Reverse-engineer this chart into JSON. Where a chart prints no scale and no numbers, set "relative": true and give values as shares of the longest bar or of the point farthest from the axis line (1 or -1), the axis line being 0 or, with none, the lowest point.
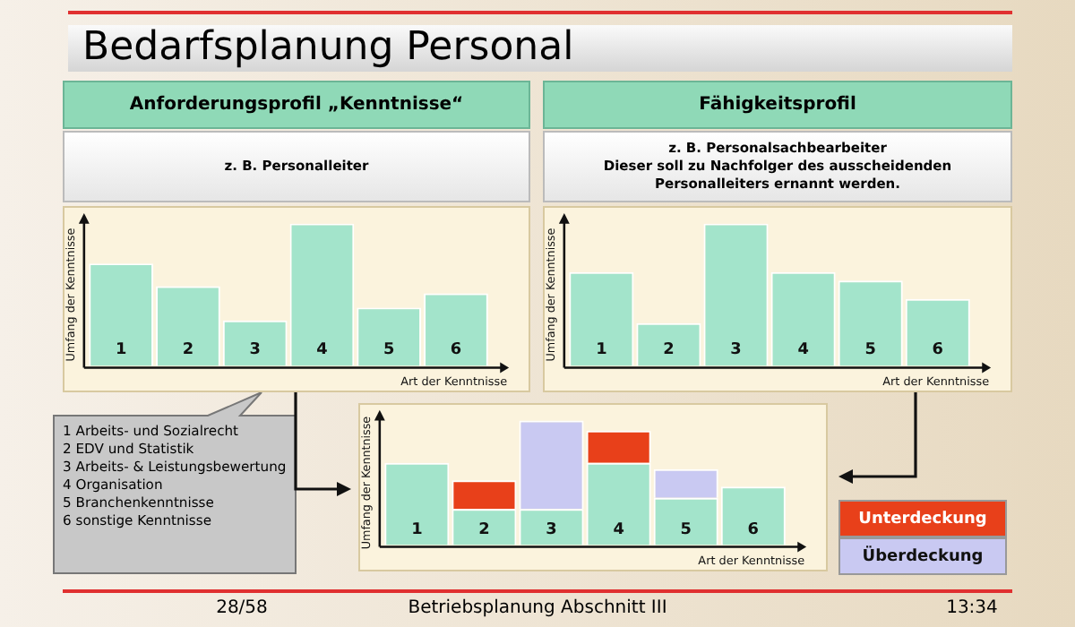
{
  "chart_data": [
    {
      "type": "other",
      "title": "Bedarfsplanung Personal",
      "annotations": [
        "1 Arbeits- und Sozialrecht",
        "2 EDV und Statistik",
        "3 Arbeits- & Leistungsbewertung",
        "4 Organisation",
        "5 Branchenkenntnisse",
        "6 sonstige Kenntnisse",
        "28/58",
        "Betriebsplanung Abschnitt III",
        "13:34"
      ]
    },
    {
      "type": "bar",
      "title": "Anforderungsprofil „Kenntnisse“",
      "subtitle": "z. B. Personalleiter",
      "xlabel": "Art der Kenntnisse",
      "ylabel": "Umfang der Kenntnisse",
      "relative": true,
      "categories": [
        "1",
        "2",
        "3",
        "4",
        "5",
        "6"
      ],
      "values": [
        0.72,
        0.56,
        0.32,
        1,
        0.41,
        0.51
      ],
      "color": "#a3e4cb"
    },
    {
      "type": "bar",
      "title": "Fähigkeitsprofil",
      "subtitle": "z. B. Personalsachbearbeiter\nDieser soll zu Nachfolger des ausscheidenden Personalleiters ernannt werden.",
      "xlabel": "Art der Kenntnisse",
      "ylabel": "Umfang der Kenntnisse",
      "relative": true,
      "categories": [
        "1",
        "2",
        "3",
        "4",
        "5",
        "6"
      ],
      "values": [
        0.66,
        0.3,
        1,
        0.66,
        0.6,
        0.47
      ],
      "color": "#a3e4cb"
    },
    {
      "type": "bar",
      "xlabel": "Art der Kenntnisse",
      "ylabel": "Umfang der Kenntnisse",
      "relative": true,
      "stacked": true,
      "legend": "right",
      "categories": [
        "1",
        "2",
        "3",
        "4",
        "5",
        "6"
      ],
      "series": [
        {
          "color": "#a3e4cb",
          "values": [
            0.66,
            0.29,
            0.29,
            0.66,
            0.38,
            0.47
          ]
        },
        {
          "name": "Unterdeckung",
          "color": "#e8401a",
          "values": [
            0,
            0.23,
            0,
            0.26,
            0,
            0
          ]
        },
        {
          "name": "Überdeckung",
          "color": "#c9c9f2",
          "values": [
            0,
            0,
            0.71,
            0,
            0.23,
            0
          ]
        }
      ]
    }
  ]
}
